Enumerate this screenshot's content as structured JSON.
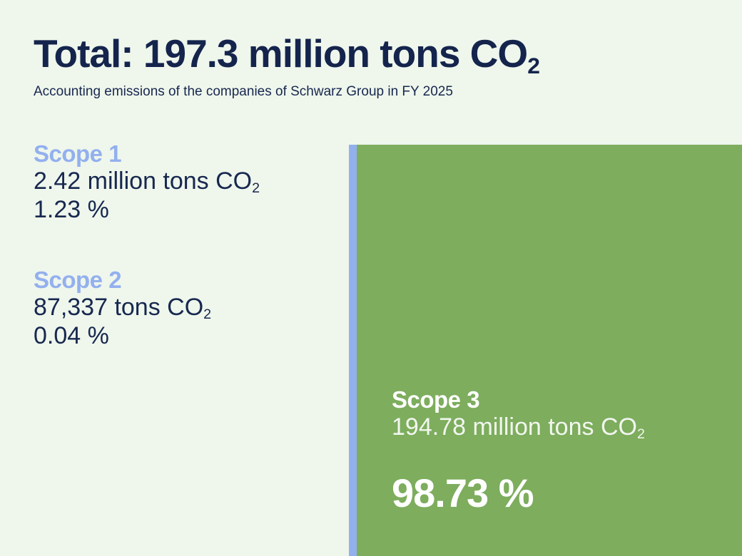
{
  "chart_data": {
    "type": "bar",
    "title_main": "Total: 197.3 million tons CO",
    "title_sub": "2",
    "subtitle": "Accounting emissions of the companies of Schwarz Group in FY 2025",
    "series": [
      {
        "name": "Scope 1",
        "amount_text": "2.42 million tons CO",
        "percent_text": "1.23 %",
        "percent": 1.23
      },
      {
        "name": "Scope 2",
        "amount_text": "87,337 tons CO",
        "percent_text": "0.04 %",
        "percent": 0.04
      },
      {
        "name": "Scope 3",
        "amount_text": "194.78 million tons CO",
        "percent_text": "98.73 %",
        "percent": 98.73
      }
    ],
    "subscript": "2",
    "colors": {
      "scope12": "#93b0ee",
      "scope3": "#7dad5d",
      "background": "#eff6ec",
      "text": "#17284f"
    }
  }
}
